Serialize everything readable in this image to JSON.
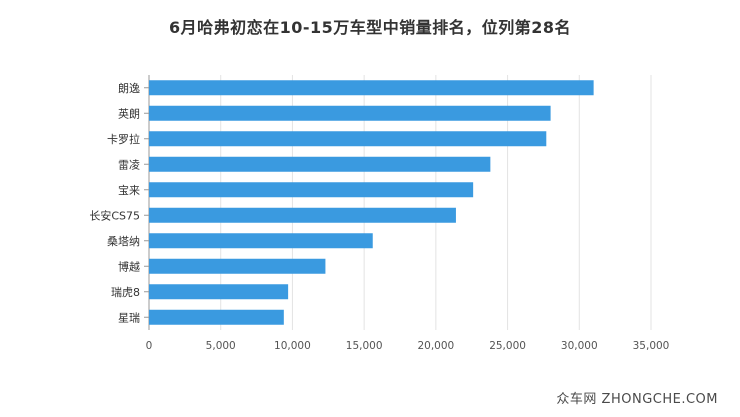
{
  "chart_data": {
    "type": "bar",
    "orientation": "horizontal",
    "title": "6月哈弗初恋在10-15万车型中销量排名，位列第28名",
    "categories": [
      "朗逸",
      "英朗",
      "卡罗拉",
      "雷凌",
      "宝来",
      "长安CS75",
      "桑塔纳",
      "博越",
      "瑞虎8",
      "星瑞"
    ],
    "values": [
      31000,
      28000,
      27700,
      23800,
      22600,
      21400,
      15600,
      12300,
      9700,
      9400
    ],
    "xlim": [
      0,
      35000
    ],
    "xticks": [
      0,
      5000,
      10000,
      15000,
      20000,
      25000,
      30000,
      35000
    ],
    "xtick_labels": [
      "0",
      "5,000",
      "10,000",
      "15,000",
      "20,000",
      "25,000",
      "30,000",
      "35,000"
    ],
    "xlabel": "",
    "ylabel": "",
    "grid": true,
    "bar_color": "#3a9ae0"
  },
  "watermark": "众车网 ZHONGCHE.COM"
}
